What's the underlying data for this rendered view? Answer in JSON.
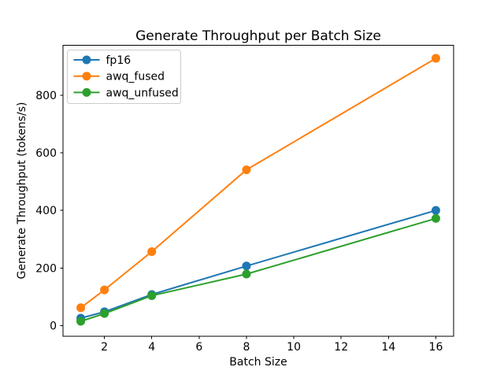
{
  "chart_data": {
    "type": "line",
    "title": "Generate Throughput per Batch Size",
    "xlabel": "Batch Size",
    "ylabel": "Generate Throughput (tokens/s)",
    "x": [
      1,
      2,
      4,
      8,
      16
    ],
    "series": [
      {
        "name": "fp16",
        "color": "#1f77b4",
        "values": [
          26,
          48,
          108,
          207,
          400
        ]
      },
      {
        "name": "awq_fused",
        "color": "#ff7f0e",
        "values": [
          62,
          124,
          257,
          541,
          928
        ]
      },
      {
        "name": "awq_unfused",
        "color": "#2ca02c",
        "values": [
          15,
          42,
          104,
          179,
          372
        ]
      }
    ],
    "xticks": [
      2,
      4,
      6,
      8,
      10,
      12,
      14,
      16
    ],
    "yticks": [
      0,
      200,
      400,
      600,
      800
    ],
    "xlim": [
      0.25,
      16.75
    ],
    "ylim": [
      -37.5,
      973
    ],
    "grid": false,
    "marker": "o",
    "legend_position": "upper left",
    "colors": {
      "background": "#ffffff",
      "text": "#000000",
      "spine": "#000000",
      "legend_border": "#cccccc"
    }
  }
}
